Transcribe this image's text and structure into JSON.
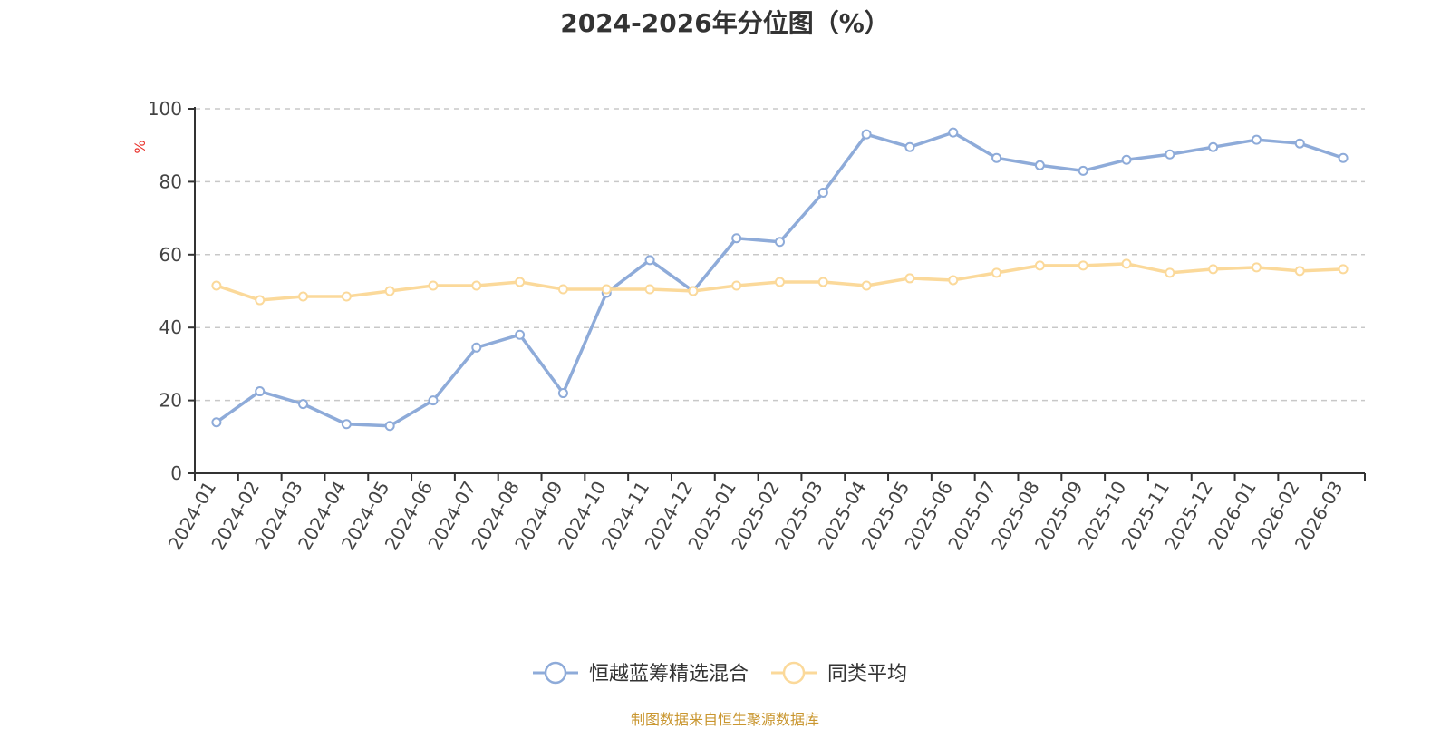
{
  "title": "2024-2026年分位图（%）",
  "source": "制图数据来自恒生聚源数据库",
  "colors": {
    "fund": "#8eabd9",
    "average": "#fbd99a",
    "ylabel": "#e8302a",
    "source": "#c9962f",
    "grid": "#c8c8c8",
    "axis": "#333333"
  },
  "chart_data": {
    "type": "line",
    "title": "2024-2026年分位图（%）",
    "ylabel": "%",
    "xlabel": "",
    "ylim": [
      0,
      100
    ],
    "yticks": [
      0,
      20,
      40,
      60,
      80,
      100
    ],
    "grid": true,
    "legend_position": "bottom-center",
    "categories": [
      "2024-01",
      "2024-02",
      "2024-03",
      "2024-04",
      "2024-05",
      "2024-06",
      "2024-07",
      "2024-08",
      "2024-09",
      "2024-10",
      "2024-11",
      "2024-12",
      "2025-01",
      "2025-02",
      "2025-03",
      "2025-04",
      "2025-05",
      "2025-06",
      "2025-07",
      "2025-08",
      "2025-09",
      "2025-10",
      "2025-11",
      "2025-12",
      "2026-01",
      "2026-02",
      "2026-03"
    ],
    "series": [
      {
        "name": "恒越蓝筹精选混合",
        "color": "#8eabd9",
        "values": [
          14,
          22.5,
          19,
          13.5,
          13,
          20,
          34.5,
          38,
          22,
          49.5,
          58.5,
          50,
          64.5,
          63.5,
          77,
          93,
          89.5,
          93.5,
          86.5,
          84.5,
          83,
          86,
          87.5,
          89.5,
          91.5,
          90.5,
          86.5
        ]
      },
      {
        "name": "同类平均",
        "color": "#fbd99a",
        "values": [
          51.5,
          47.5,
          48.5,
          48.5,
          50,
          51.5,
          51.5,
          52.5,
          50.5,
          50.5,
          50.5,
          50,
          51.5,
          52.5,
          52.5,
          51.5,
          53.5,
          53,
          55,
          57,
          57,
          57.5,
          55,
          56,
          56.5,
          55.5,
          56
        ]
      }
    ]
  }
}
